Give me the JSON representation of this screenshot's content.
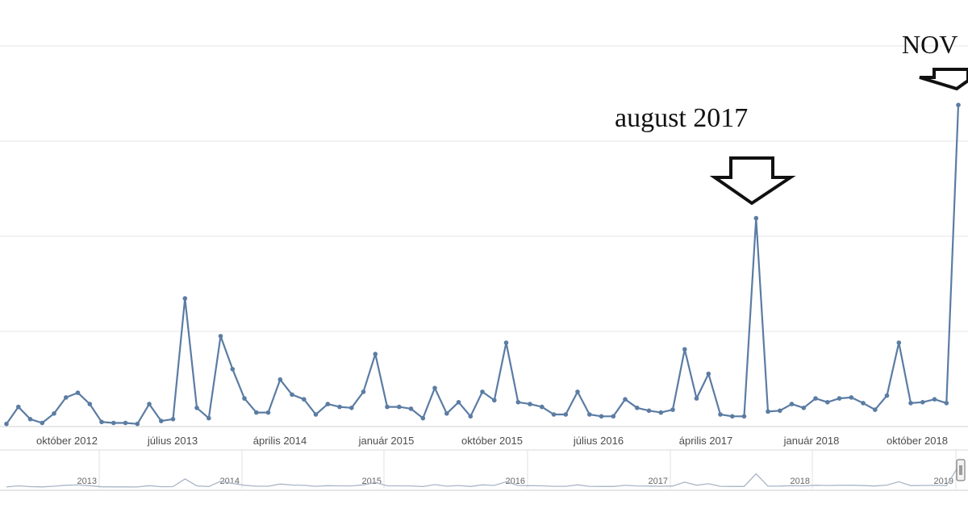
{
  "chart_data": {
    "type": "line",
    "series": [
      {
        "values": [
          2,
          20,
          7,
          3,
          13,
          30,
          35,
          23,
          4,
          3,
          3,
          2,
          23,
          5,
          7,
          135,
          19,
          8,
          95,
          60,
          29,
          14,
          14,
          49,
          33,
          28,
          12,
          23,
          20,
          19,
          36,
          76,
          20,
          20,
          18,
          8,
          40,
          13,
          25,
          10,
          36,
          27,
          88,
          25,
          23,
          20,
          12,
          12,
          36,
          12,
          10,
          10,
          28,
          19,
          16,
          14,
          17,
          81,
          29,
          55,
          12,
          10,
          10,
          220,
          15,
          16,
          23,
          19,
          29,
          25,
          29,
          30,
          24,
          17,
          32,
          88,
          24,
          25,
          28,
          24,
          340
        ]
      }
    ],
    "x_labels": [
      "október 2012",
      "július 2013",
      "április 2014",
      "január 2015",
      "október 2015",
      "július 2016",
      "április 2017",
      "január 2018",
      "október 2018"
    ],
    "navigator_labels": [
      "2013",
      "2014",
      "2015",
      "2016",
      "2017",
      "2018",
      "2019"
    ],
    "annotations": [
      {
        "text": "august 2017"
      },
      {
        "text": "NOV"
      }
    ],
    "grid": true,
    "colors": {
      "line": "#5b7ca3",
      "grid": "#e6e6e6",
      "navigator": "#a9b6c6"
    }
  }
}
